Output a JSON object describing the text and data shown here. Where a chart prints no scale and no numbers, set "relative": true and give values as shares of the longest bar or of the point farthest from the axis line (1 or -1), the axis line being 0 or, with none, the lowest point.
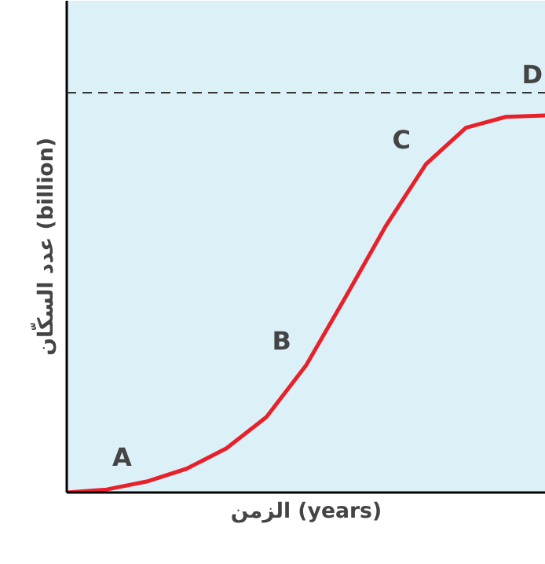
{
  "chart_data": {
    "type": "line",
    "relative": true,
    "xlabel": "الزمن (years)",
    "ylabel": "عدد السكّان (billion)",
    "categories": [
      null,
      null,
      null,
      null,
      null,
      null,
      null,
      null,
      null,
      null,
      null,
      null,
      null
    ],
    "series": [
      {
        "color": "#e8202a",
        "values": [
          0,
          0.008,
          0.029,
          0.063,
          0.117,
          0.2,
          0.338,
          0.521,
          0.708,
          0.871,
          0.967,
          0.996,
          1.0
        ]
      }
    ],
    "ref_lines": [
      {
        "axis": "y",
        "value": 1.06,
        "label": "D",
        "color": "#333333",
        "line_style": "dashed"
      }
    ],
    "annotations": [
      "A",
      "B",
      "C"
    ],
    "marker": "none",
    "line_style": "solid"
  }
}
